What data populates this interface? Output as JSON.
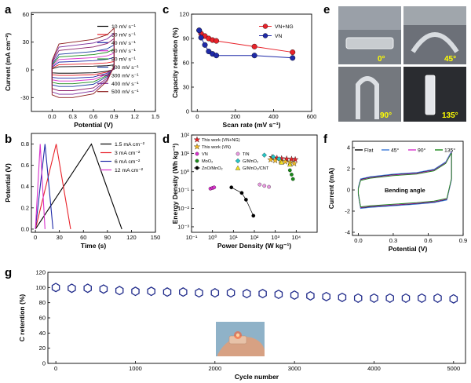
{
  "panel_labels": [
    "a",
    "b",
    "c",
    "d",
    "e",
    "f",
    "g"
  ],
  "photo_e": {
    "angles": [
      "0°",
      "45°",
      "90°",
      "135°"
    ]
  },
  "chart_data": [
    {
      "id": "a",
      "type": "line",
      "xlabel": "Potential (V)",
      "ylabel": "Current (mA cm⁻²)",
      "xlim": [
        -0.3,
        1.5
      ],
      "ylim": [
        -45,
        62
      ],
      "xticks": [
        0.0,
        0.3,
        0.6,
        0.9,
        1.2,
        1.5
      ],
      "yticks": [
        -30,
        0,
        30,
        60
      ],
      "legend_position": "top-right",
      "series": [
        {
          "name": "10 mV s⁻¹",
          "color": "#000000",
          "scale": 0.12
        },
        {
          "name": "20 mV s⁻¹",
          "color": "#e8222a",
          "scale": 0.2
        },
        {
          "name": "40 mV s⁻¹",
          "color": "#1f2aa8",
          "scale": 0.3
        },
        {
          "name": "60 mV s⁻¹",
          "color": "#d933cc",
          "scale": 0.4
        },
        {
          "name": "80 mV s⁻¹",
          "color": "#1a8a1a",
          "scale": 0.5
        },
        {
          "name": "100 mV s⁻¹",
          "color": "#1a3aa0",
          "scale": 0.6
        },
        {
          "name": "300 mV s⁻¹",
          "color": "#8b1f6b",
          "scale": 0.75
        },
        {
          "name": "400 mV s⁻¹",
          "color": "#7a2a9a",
          "scale": 0.88
        },
        {
          "name": "500 mV s⁻¹",
          "color": "#8b1a1a",
          "scale": 1.0
        }
      ],
      "envelope": {
        "x": [
          0.0,
          0.1,
          0.3,
          0.6,
          0.8,
          0.9
        ],
        "upper": [
          10,
          28,
          30,
          33,
          38,
          45
        ],
        "lower": [
          -27,
          -30,
          -30,
          -26,
          -12,
          4
        ]
      }
    },
    {
      "id": "b",
      "type": "line",
      "xlabel": "Time (s)",
      "ylabel": "Potential (V)",
      "xlim": [
        -5,
        150
      ],
      "ylim": [
        -0.03,
        0.9
      ],
      "xticks": [
        0,
        30,
        60,
        90,
        120,
        150
      ],
      "yticks": [
        0.0,
        0.2,
        0.4,
        0.6,
        0.8
      ],
      "legend_position": "top-right",
      "series": [
        {
          "name": "1.5 mA cm⁻²",
          "color": "#000000",
          "x": [
            0,
            70,
            108
          ],
          "y": [
            0,
            0.8,
            0
          ]
        },
        {
          "name": "3 mA cm⁻²",
          "color": "#e8222a",
          "x": [
            0,
            26,
            44
          ],
          "y": [
            0,
            0.8,
            0
          ]
        },
        {
          "name": "6 mA cm⁻²",
          "color": "#1f2aa8",
          "x": [
            0,
            12,
            22
          ],
          "y": [
            0,
            0.8,
            0
          ]
        },
        {
          "name": "12 mA cm⁻²",
          "color": "#d933cc",
          "x": [
            0,
            6,
            12
          ],
          "y": [
            0,
            0.8,
            0
          ]
        }
      ]
    },
    {
      "id": "c",
      "type": "line",
      "xlabel": "Scan rate (mV s⁻¹)",
      "ylabel": "Capacity retention (%)",
      "xlim": [
        -30,
        600
      ],
      "ylim": [
        0,
        120
      ],
      "xticks": [
        0,
        200,
        400,
        600
      ],
      "yticks": [
        0,
        30,
        60,
        90,
        120
      ],
      "legend_position": "top-right",
      "series": [
        {
          "name": "VN+NG",
          "color": "#e8222a",
          "x": [
            10,
            20,
            40,
            60,
            80,
            100,
            300,
            500
          ],
          "y": [
            100,
            96,
            93,
            90,
            88,
            87,
            80,
            73
          ]
        },
        {
          "name": "VN",
          "color": "#1f2aa8",
          "x": [
            10,
            20,
            40,
            60,
            80,
            100,
            300,
            500
          ],
          "y": [
            100,
            91,
            82,
            74,
            71,
            69,
            69,
            66
          ]
        }
      ]
    },
    {
      "id": "d",
      "type": "scatter",
      "xlabel": "Power Density (W kg⁻¹)",
      "ylabel": "Energy Density (Wh kg⁻¹)",
      "xscale": "log",
      "yscale": "log",
      "xlim": [
        0.1,
        100000
      ],
      "ylim": [
        0.0005,
        100
      ],
      "xticks": [
        "10⁻¹",
        "10⁰",
        "10¹",
        "10²",
        "10³",
        "10⁴"
      ],
      "yticks": [
        "10⁻³",
        "10⁻²",
        "10⁻¹",
        "10⁰",
        "10¹",
        "10²"
      ],
      "legend_position": "top-left",
      "series": [
        {
          "name": "This work (VN+NG)",
          "color": "#e8222a",
          "marker": "star",
          "x": [
            700,
            1200,
            2000,
            3500,
            6000,
            9000
          ],
          "y": [
            6,
            5.5,
            5.2,
            5,
            4.8,
            4.6
          ]
        },
        {
          "name": "This work (VN)",
          "color": "#f2b824",
          "marker": "star",
          "x": [
            600,
            1000,
            1800,
            3000,
            5000,
            8000
          ],
          "y": [
            4.5,
            4.1,
            3.8,
            3.5,
            3.2,
            2.8
          ]
        },
        {
          "name": "VN",
          "color": "#d933cc",
          "marker": "circle",
          "x": [
            0.8,
            1.0,
            1.2
          ],
          "y": [
            0.12,
            0.13,
            0.14
          ]
        },
        {
          "name": "TiN",
          "color": "#e89ae0",
          "marker": "circle",
          "x": [
            180,
            300,
            500
          ],
          "y": [
            0.2,
            0.17,
            0.15
          ]
        },
        {
          "name": "MoO₂",
          "color": "#1a8a1a",
          "marker": "circle",
          "x": [
            5000,
            6000,
            7000
          ],
          "y": [
            1.2,
            0.7,
            0.4
          ]
        },
        {
          "name": "G/MnO₂",
          "color": "#27c4c4",
          "marker": "diamond",
          "x": [
            300,
            800,
            1500
          ],
          "y": [
            8,
            6.5,
            5
          ]
        },
        {
          "name": "ZnO/MnO₂",
          "color": "#000000",
          "marker": "circle",
          "x": [
            8,
            25,
            40,
            90
          ],
          "y": [
            0.14,
            0.07,
            0.03,
            0.004
          ]
        },
        {
          "name": "G/MnO₂/CNT",
          "color": "#f0e020",
          "marker": "triangle",
          "x": [
            2000,
            5000
          ],
          "y": [
            3.2,
            2.5
          ]
        }
      ]
    },
    {
      "id": "f",
      "type": "line",
      "xlabel": "Potential (V)",
      "ylabel": "Current (mA)",
      "xlim": [
        -0.05,
        0.9
      ],
      "ylim": [
        -4.3,
        4.6
      ],
      "xticks": [
        0.0,
        0.3,
        0.6,
        0.9
      ],
      "yticks": [
        -4,
        -2,
        0,
        2,
        4
      ],
      "annotation": "Bending angle",
      "legend_position": "top",
      "series": [
        {
          "name": "Flat",
          "color": "#000000",
          "offset": 0.0
        },
        {
          "name": "45°",
          "color": "#3a7ad9",
          "offset": 0.05
        },
        {
          "name": "90°",
          "color": "#d933cc",
          "offset": -0.05
        },
        {
          "name": "135°",
          "color": "#1a8a1a",
          "offset": -0.1
        }
      ]
    },
    {
      "id": "g",
      "type": "scatter",
      "xlabel": "Cycle number",
      "ylabel": "C retention (%)",
      "xlim": [
        -100,
        5150
      ],
      "ylim": [
        0,
        120
      ],
      "xticks": [
        0,
        1000,
        2000,
        3000,
        4000,
        5000
      ],
      "yticks": [
        0,
        20,
        40,
        60,
        80,
        100,
        120
      ],
      "series": [
        {
          "name": "C retention",
          "color": "#1f2a8a",
          "marker": "hexagon",
          "x": [
            0,
            200,
            400,
            600,
            800,
            1000,
            1200,
            1400,
            1600,
            1800,
            2000,
            2200,
            2400,
            2600,
            2800,
            3000,
            3200,
            3400,
            3600,
            3800,
            4000,
            4200,
            4400,
            4600,
            4800,
            5000
          ],
          "y": [
            100,
            99,
            99,
            98,
            96,
            95,
            95,
            94,
            94,
            93,
            93,
            93,
            92,
            92,
            91,
            90,
            89,
            88,
            87,
            86,
            86,
            86,
            86,
            86,
            86,
            85
          ]
        }
      ]
    }
  ]
}
